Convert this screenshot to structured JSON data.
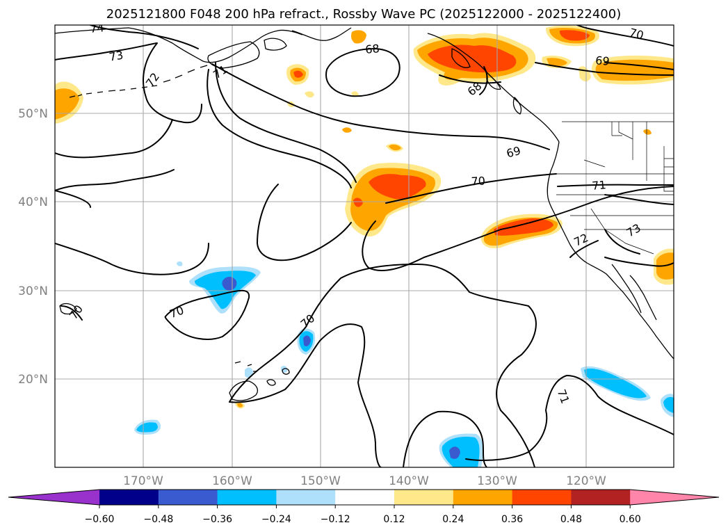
{
  "title": "2025121800 F048 200 hPa refract., Rossby Wave PC (2025122000 - 2025122400)",
  "map": {
    "lat_labels": [
      "50°N",
      "40°N",
      "30°N",
      "20°N"
    ],
    "lon_labels": [
      "170°W",
      "160°W",
      "150°W",
      "140°W",
      "130°W",
      "120°W"
    ],
    "contour_labels": [
      "74",
      "73",
      "72",
      "71",
      "68",
      "68",
      "70",
      "69",
      "69",
      "70",
      "71",
      "72",
      "73",
      "70",
      "70",
      "70",
      "71"
    ]
  },
  "colorbar": {
    "ticks": [
      "−0.60",
      "−0.48",
      "−0.36",
      "−0.24",
      "−0.12",
      "0.12",
      "0.24",
      "0.36",
      "0.48",
      "0.60"
    ],
    "colors": [
      "#9932cc",
      "#00008b",
      "#3a5bd0",
      "#00bfff",
      "#aee0fb",
      "#ffffff",
      "#ffe88a",
      "#ffa500",
      "#ff4500",
      "#b22222",
      "#ff85aa"
    ]
  },
  "colors": {
    "c012": "#ffe88a",
    "c024": "#ffa500",
    "c036": "#ff4500",
    "n012": "#aee0fb",
    "n024": "#00bfff",
    "n036": "#3a5bd0",
    "grid": "#a8a8a8"
  }
}
